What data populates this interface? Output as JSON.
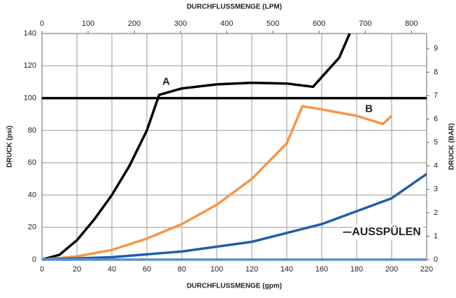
{
  "chart_data": {
    "type": "line",
    "xlabel": "DURCHFLUSSMENGE (gpm)",
    "x2label": "DURCHFLUSSMENGE (LPM)",
    "ylabel": "DRUCK (psi)",
    "y2label": "DRUCK (BAR)",
    "xlim": [
      0,
      220
    ],
    "xticks": [
      0,
      20,
      40,
      60,
      80,
      100,
      120,
      140,
      160,
      180,
      200,
      220
    ],
    "x2lim": [
      0,
      832.8
    ],
    "x2ticks": [
      0,
      100,
      200,
      300,
      400,
      500,
      600,
      700,
      800
    ],
    "ylim": [
      0,
      140
    ],
    "yticks": [
      0,
      20,
      40,
      60,
      80,
      100,
      120,
      140
    ],
    "y2lim": [
      0,
      9.65
    ],
    "y2ticks": [
      0,
      1,
      2,
      3,
      4,
      5,
      6,
      7,
      8,
      9
    ],
    "grid": true,
    "series": [
      {
        "color": "#000000",
        "x": [
          0,
          10,
          20,
          30,
          40,
          50,
          60,
          67,
          80,
          100,
          120,
          140,
          155,
          170,
          176
        ],
        "values": [
          0,
          3,
          12,
          25,
          40,
          58,
          80,
          102,
          106,
          108.5,
          109.5,
          109,
          107,
          125,
          140
        ]
      },
      {
        "color": "#000000",
        "x": [
          0,
          220
        ],
        "values": [
          100,
          100
        ]
      },
      {
        "color": "#f79646",
        "x": [
          0,
          20,
          40,
          60,
          80,
          100,
          120,
          140,
          149,
          160,
          180,
          195,
          200
        ],
        "values": [
          0,
          2,
          6,
          13,
          22,
          34,
          50,
          72,
          95,
          93,
          89,
          84,
          89
        ]
      },
      {
        "color": "#1f5fa8",
        "x": [
          0,
          40,
          80,
          120,
          160,
          200,
          220
        ],
        "values": [
          0,
          1.5,
          5,
          11,
          22,
          38,
          53
        ]
      },
      {
        "color": "#5b8fd0",
        "x": [
          0,
          220
        ],
        "values": [
          0,
          0
        ]
      }
    ],
    "annotations": [
      {
        "text": "A",
        "x": 71,
        "y": 110
      },
      {
        "text": "B",
        "x": 187,
        "y": 93
      },
      {
        "text": "AUSSPÜLEN",
        "x": 197,
        "y": 17
      }
    ]
  }
}
